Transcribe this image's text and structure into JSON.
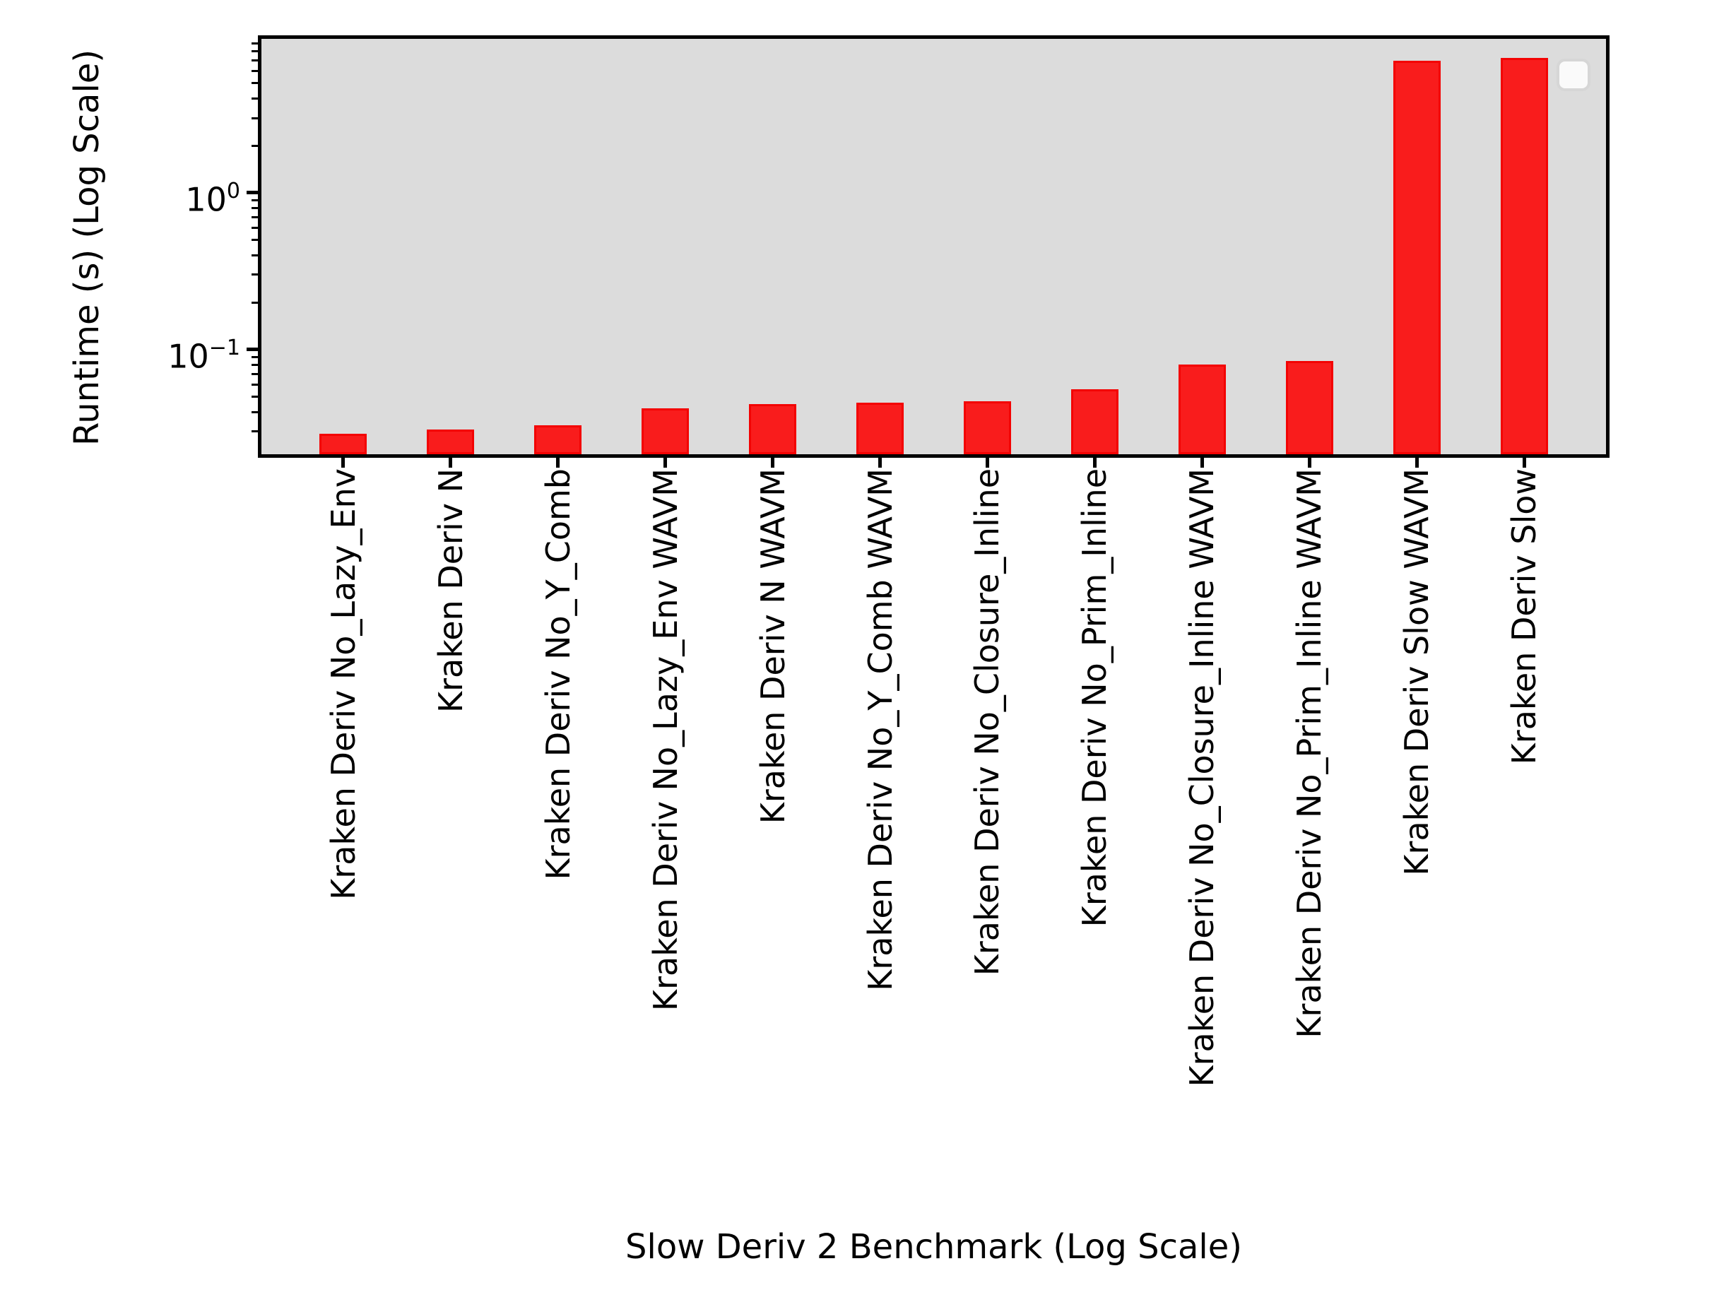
{
  "chart_data": {
    "type": "bar",
    "title": "",
    "xlabel": "Slow Deriv 2 Benchmark (Log Scale)",
    "ylabel": "Runtime (s) (Log Scale)",
    "yscale": "log",
    "ylim": [
      0.0215,
      9.6
    ],
    "xlim_units": [
      -0.76,
      11.76
    ],
    "bar_width_units": 0.44,
    "grid": false,
    "legend": {
      "visible": true,
      "position": "upper right",
      "entries": []
    },
    "categories": [
      "Kraken Deriv No_Lazy_Env",
      "Kraken Deriv N",
      "Kraken Deriv No_Y_Comb",
      "Kraken Deriv No_Lazy_Env WAVM",
      "Kraken Deriv N WAVM",
      "Kraken Deriv No_Y_Comb WAVM",
      "Kraken Deriv No_Closure_Inline",
      "Kraken Deriv No_Prim_Inline",
      "Kraken Deriv No_Closure_Inline WAVM",
      "Kraken Deriv No_Prim_Inline WAVM",
      "Kraken Deriv Slow WAVM",
      "Kraken Deriv Slow"
    ],
    "values": [
      0.029,
      0.031,
      0.033,
      0.042,
      0.045,
      0.046,
      0.047,
      0.056,
      0.08,
      0.085,
      6.95,
      7.27
    ],
    "ytick_major_exponents": [
      0,
      -1
    ],
    "colors": {
      "bar_fill": "#f91c1c",
      "bar_edge": "#f30303",
      "plot_bg": "#dcdcdc",
      "figure_bg": "#ffffff",
      "spine": "#000000",
      "text": "#000000",
      "legend_bg": "#ffffff",
      "legend_border": "#d6d6d6"
    }
  }
}
